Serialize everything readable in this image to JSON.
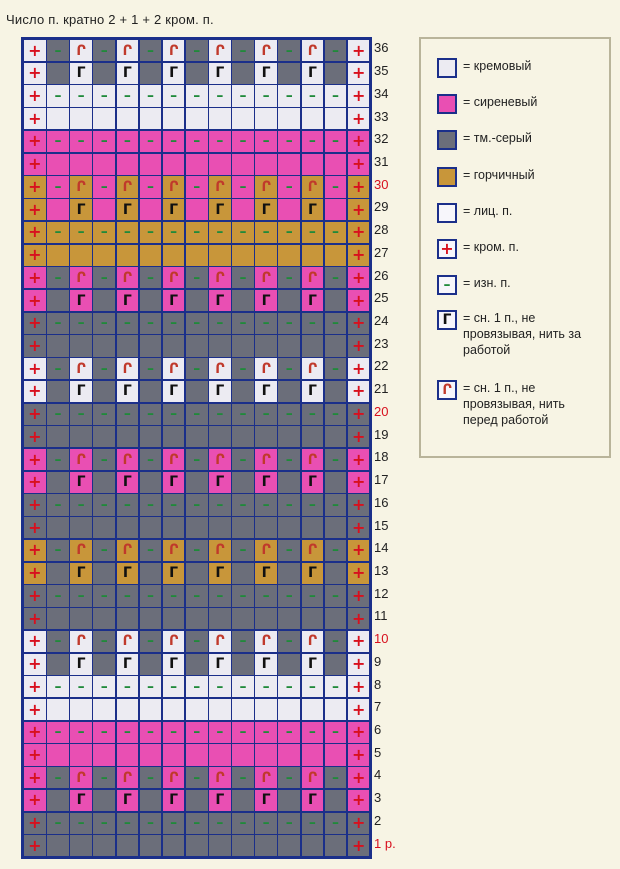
{
  "title": "Число п. кратно 2 + 1 + 2 кром. п.",
  "palette": {
    "cream": "#ecebf2",
    "lilac": "#e94fb3",
    "gray": "#6b6e7a",
    "mustard": "#c8963a",
    "white": "#f7f6fb",
    "grid": "#1b2f8a"
  },
  "symbols": {
    "edge": "+",
    "purl": "–",
    "slip_back": "Г",
    "slip_front": "Ր"
  },
  "legend": {
    "cream": "= кремовый",
    "lilac": "= сиреневый",
    "gray": "= тм.-серый",
    "mustard": "= горчичный",
    "knit": "= лиц. п.",
    "edge": "= кром. п.",
    "purl": "= изн. п.",
    "slip_back": "= сн. 1 п., не провязывая, нить за работой",
    "slip_front": "= сн. 1 п., не провязывая, нить перед работой"
  },
  "row_labels": [
    "1 р.",
    "2",
    "3",
    "4",
    "5",
    "6",
    "7",
    "8",
    "9",
    "10",
    "11",
    "12",
    "13",
    "14",
    "15",
    "16",
    "17",
    "18",
    "19",
    "20",
    "21",
    "22",
    "23",
    "24",
    "25",
    "26",
    "27",
    "28",
    "29",
    "30",
    "31",
    "32",
    "33",
    "34",
    "35",
    "36"
  ],
  "highlighted_rows": [
    10,
    20,
    30
  ],
  "chart": {
    "columns": 15,
    "rows_bottom_to_top": [
      {
        "n": 1,
        "bg": "gray",
        "pattern": "plain"
      },
      {
        "n": 2,
        "bg": "gray",
        "pattern": "purl"
      },
      {
        "n": 3,
        "bg": "lilac",
        "alt": "gray",
        "pattern": "slip_back"
      },
      {
        "n": 4,
        "bg": "lilac",
        "alt": "gray",
        "pattern": "slip_front"
      },
      {
        "n": 5,
        "bg": "lilac",
        "pattern": "plain"
      },
      {
        "n": 6,
        "bg": "lilac",
        "pattern": "purl"
      },
      {
        "n": 7,
        "bg": "cream",
        "pattern": "plain"
      },
      {
        "n": 8,
        "bg": "cream",
        "pattern": "purl"
      },
      {
        "n": 9,
        "bg": "cream",
        "alt": "gray",
        "pattern": "slip_back"
      },
      {
        "n": 10,
        "bg": "cream",
        "alt": "gray",
        "pattern": "slip_front"
      },
      {
        "n": 11,
        "bg": "gray",
        "pattern": "plain"
      },
      {
        "n": 12,
        "bg": "gray",
        "pattern": "purl"
      },
      {
        "n": 13,
        "bg": "mustard",
        "alt": "gray",
        "pattern": "slip_back"
      },
      {
        "n": 14,
        "bg": "mustard",
        "alt": "gray",
        "pattern": "slip_front"
      },
      {
        "n": 15,
        "bg": "gray",
        "pattern": "plain"
      },
      {
        "n": 16,
        "bg": "gray",
        "pattern": "purl"
      },
      {
        "n": 17,
        "bg": "lilac",
        "alt": "gray",
        "pattern": "slip_back"
      },
      {
        "n": 18,
        "bg": "lilac",
        "alt": "gray",
        "pattern": "slip_front"
      },
      {
        "n": 19,
        "bg": "gray",
        "pattern": "plain"
      },
      {
        "n": 20,
        "bg": "gray",
        "pattern": "purl"
      },
      {
        "n": 21,
        "bg": "cream",
        "alt": "gray",
        "pattern": "slip_back"
      },
      {
        "n": 22,
        "bg": "cream",
        "alt": "gray",
        "pattern": "slip_front"
      },
      {
        "n": 23,
        "bg": "gray",
        "pattern": "plain"
      },
      {
        "n": 24,
        "bg": "gray",
        "pattern": "purl"
      },
      {
        "n": 25,
        "bg": "lilac",
        "alt": "gray",
        "pattern": "slip_back"
      },
      {
        "n": 26,
        "bg": "lilac",
        "alt": "gray",
        "pattern": "slip_front"
      },
      {
        "n": 27,
        "bg": "mustard",
        "pattern": "plain"
      },
      {
        "n": 28,
        "bg": "mustard",
        "pattern": "purl"
      },
      {
        "n": 29,
        "bg": "mustard",
        "alt": "lilac",
        "pattern": "slip_back"
      },
      {
        "n": 30,
        "bg": "mustard",
        "alt": "lilac",
        "pattern": "slip_front"
      },
      {
        "n": 31,
        "bg": "lilac",
        "pattern": "plain"
      },
      {
        "n": 32,
        "bg": "lilac",
        "pattern": "purl"
      },
      {
        "n": 33,
        "bg": "cream",
        "pattern": "plain"
      },
      {
        "n": 34,
        "bg": "cream",
        "pattern": "purl"
      },
      {
        "n": 35,
        "bg": "cream",
        "alt": "gray",
        "pattern": "slip_back"
      },
      {
        "n": 36,
        "bg": "cream",
        "alt": "gray",
        "pattern": "slip_front"
      }
    ]
  }
}
